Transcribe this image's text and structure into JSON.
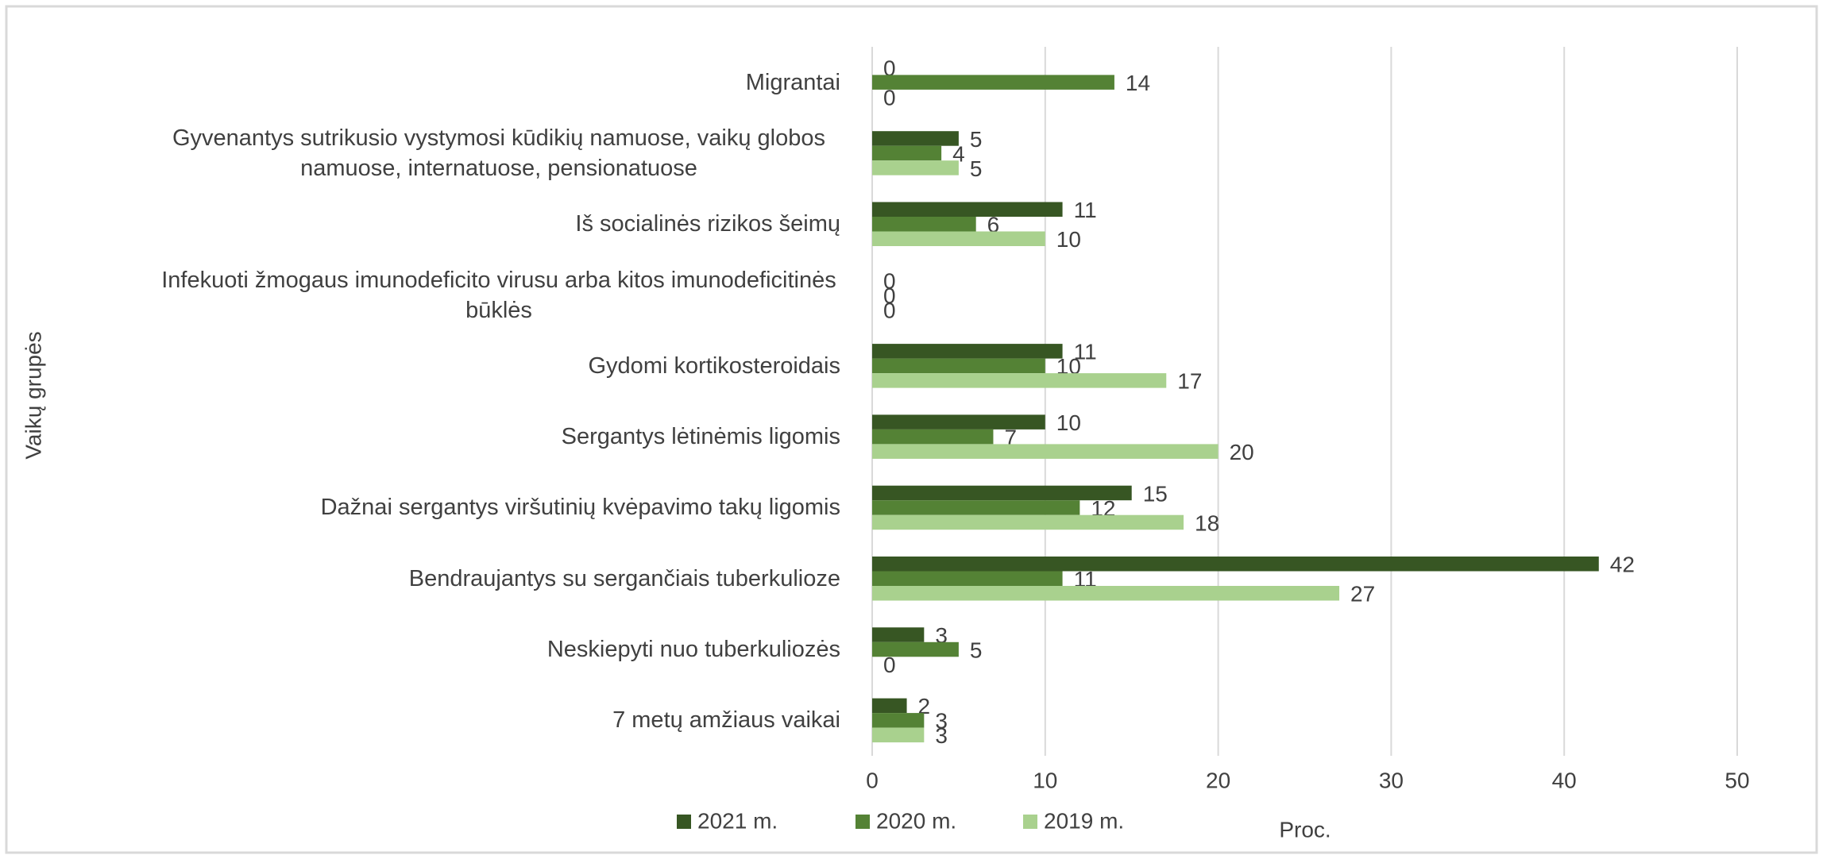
{
  "chart_data": {
    "type": "bar",
    "orientation": "horizontal",
    "xlabel": "Proc.",
    "ylabel": "Vaikų grupės",
    "categories": [
      "Migrantai",
      "Gyvenantys sutrikusio vystymosi kūdikių namuose, vaikų globos namuose, internatuose, pensionatuose",
      "Iš socialinės rizikos šeimų",
      "Infekuoti žmogaus imunodeficito virusu arba kitos imunodeficitinės būklės",
      "Gydomi kortikosteroidais",
      "Sergantys lėtinėmis ligomis",
      "Dažnai sergantys viršutinių kvėpavimo takų ligomis",
      "Bendraujantys su sergančiais tuberkulioze",
      "Neskiepyti nuo tuberkuliozės",
      "7 metų amžiaus vaikai"
    ],
    "series": [
      {
        "name": "2021 m.",
        "color": "#375623",
        "values": [
          0,
          5,
          11,
          0,
          11,
          10,
          15,
          42,
          3,
          2
        ]
      },
      {
        "name": "2020 m.",
        "color": "#548235",
        "values": [
          14,
          4,
          6,
          0,
          10,
          7,
          12,
          11,
          5,
          3
        ]
      },
      {
        "name": "2019 m.",
        "color": "#a9d18e",
        "values": [
          0,
          5,
          10,
          0,
          17,
          20,
          18,
          27,
          0,
          3
        ]
      }
    ],
    "xlim": [
      0,
      50
    ],
    "xticks": [
      0,
      10,
      20,
      30,
      40,
      50
    ],
    "grid": true,
    "legend": "bottom"
  }
}
